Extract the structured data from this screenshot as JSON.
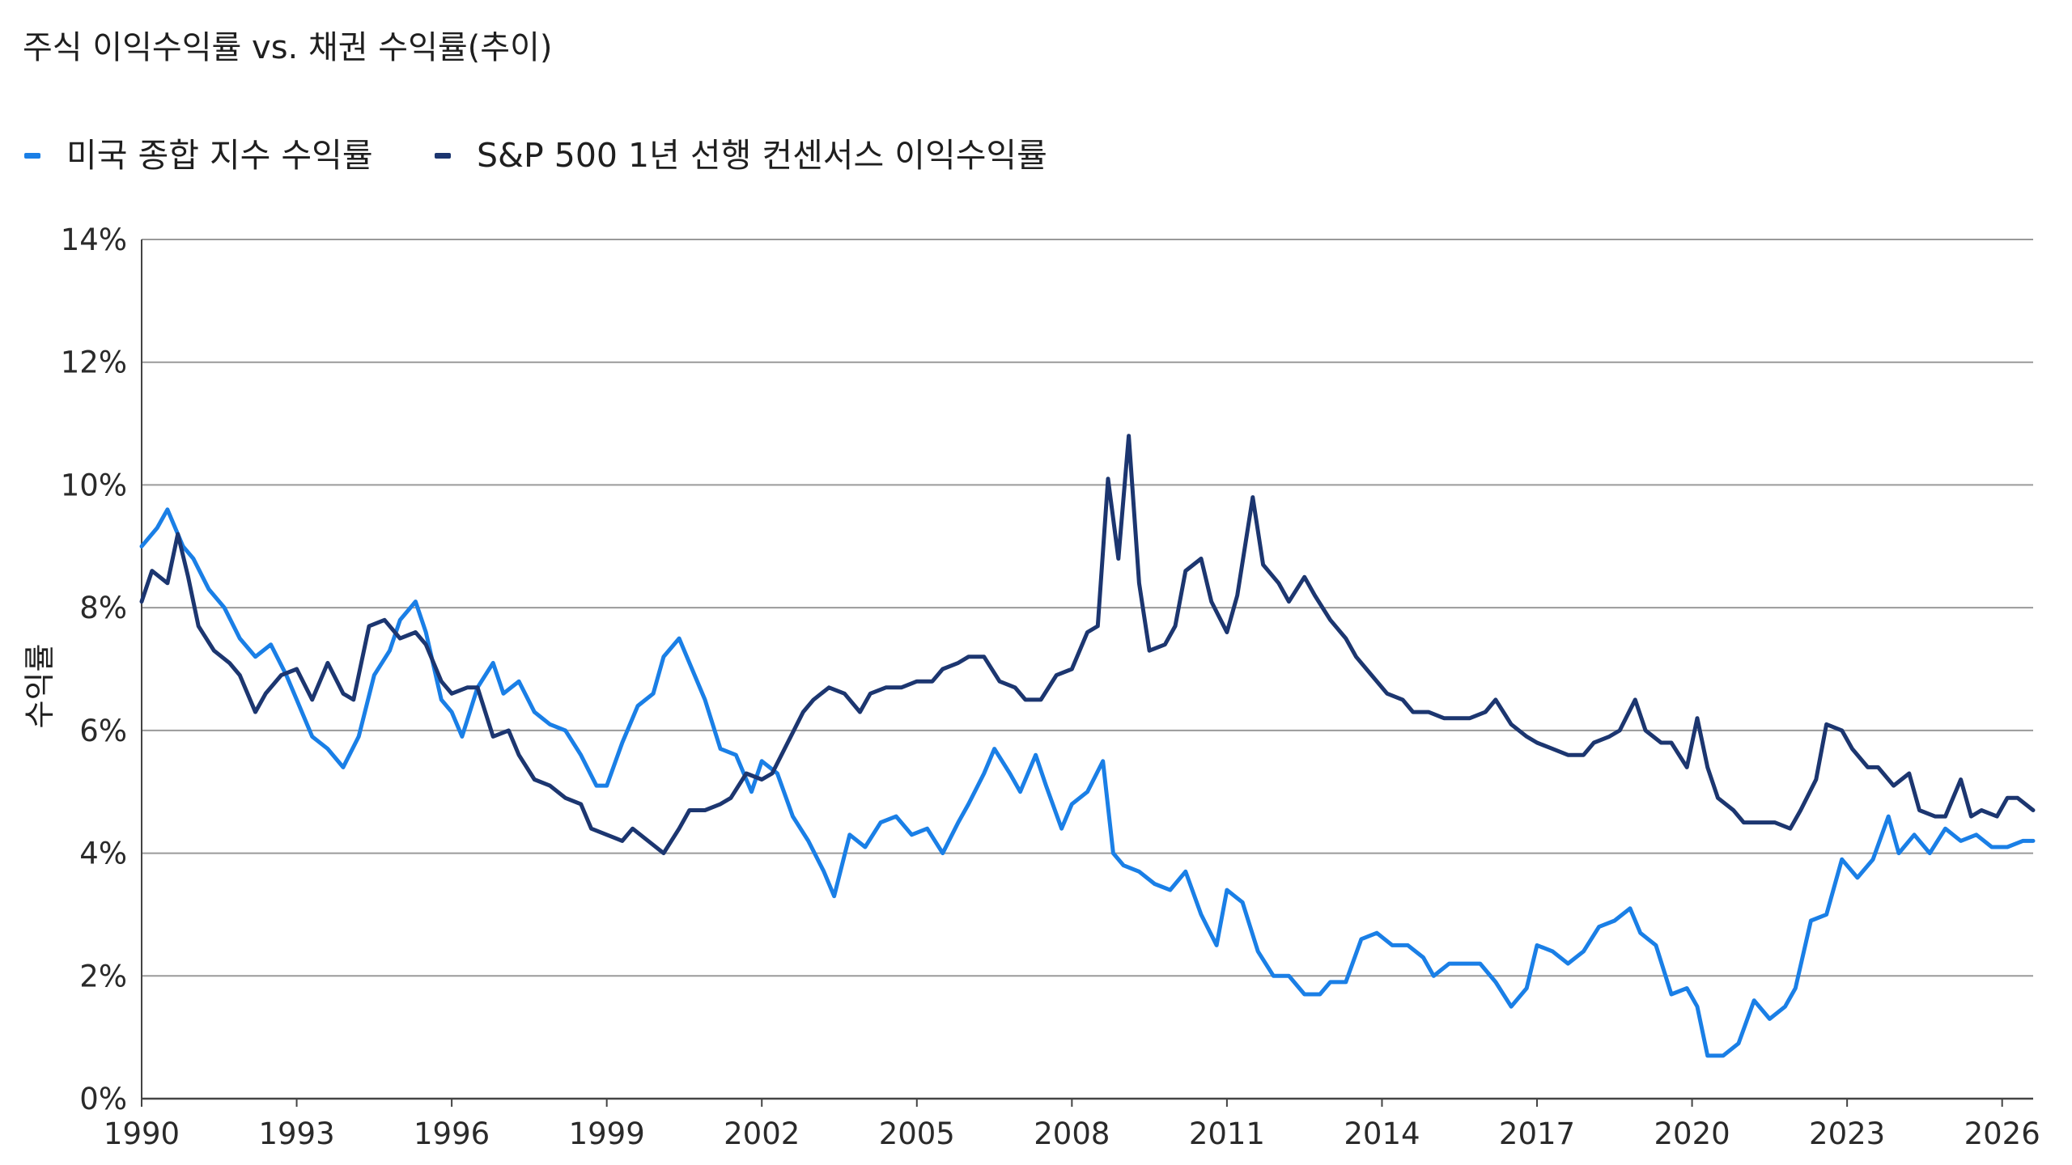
{
  "chart_data": {
    "type": "line",
    "title": "주식 이익수익률 vs. 채권 수익률(추이)",
    "ylabel": "수익률",
    "xlabel": "",
    "xlim": [
      1990,
      2026.6
    ],
    "ylim": [
      0,
      14
    ],
    "grid": "horizontal",
    "legend_position": "top-left",
    "x_ticks": [
      1990,
      1993,
      1996,
      1999,
      2002,
      2005,
      2008,
      2011,
      2014,
      2017,
      2020,
      2023,
      2026
    ],
    "x_tick_labels": [
      "1990",
      "1993",
      "1996",
      "1999",
      "2002",
      "2005",
      "2008",
      "2011",
      "2014",
      "2017",
      "2020",
      "2023",
      "2026"
    ],
    "y_ticks": [
      0,
      2,
      4,
      6,
      8,
      10,
      12,
      14
    ],
    "y_tick_labels": [
      "0%",
      "2%",
      "4%",
      "6%",
      "8%",
      "10%",
      "12%",
      "14%"
    ],
    "series": [
      {
        "name": "미국 종합 지수 수익률",
        "color": "#1a7fe6",
        "points": [
          [
            1990.0,
            9.0
          ],
          [
            1990.3,
            9.3
          ],
          [
            1990.5,
            9.6
          ],
          [
            1990.8,
            9.0
          ],
          [
            1991.0,
            8.8
          ],
          [
            1991.3,
            8.3
          ],
          [
            1991.6,
            8.0
          ],
          [
            1991.9,
            7.5
          ],
          [
            1992.2,
            7.2
          ],
          [
            1992.5,
            7.4
          ],
          [
            1992.8,
            6.9
          ],
          [
            1993.0,
            6.5
          ],
          [
            1993.3,
            5.9
          ],
          [
            1993.6,
            5.7
          ],
          [
            1993.9,
            5.4
          ],
          [
            1994.2,
            5.9
          ],
          [
            1994.5,
            6.9
          ],
          [
            1994.8,
            7.3
          ],
          [
            1995.0,
            7.8
          ],
          [
            1995.3,
            8.1
          ],
          [
            1995.5,
            7.6
          ],
          [
            1995.8,
            6.5
          ],
          [
            1996.0,
            6.3
          ],
          [
            1996.2,
            5.9
          ],
          [
            1996.5,
            6.7
          ],
          [
            1996.8,
            7.1
          ],
          [
            1997.0,
            6.6
          ],
          [
            1997.3,
            6.8
          ],
          [
            1997.6,
            6.3
          ],
          [
            1997.9,
            6.1
          ],
          [
            1998.2,
            6.0
          ],
          [
            1998.5,
            5.6
          ],
          [
            1998.8,
            5.1
          ],
          [
            1999.0,
            5.1
          ],
          [
            1999.3,
            5.8
          ],
          [
            1999.6,
            6.4
          ],
          [
            1999.9,
            6.6
          ],
          [
            2000.1,
            7.2
          ],
          [
            2000.4,
            7.5
          ],
          [
            2000.6,
            7.1
          ],
          [
            2000.9,
            6.5
          ],
          [
            2001.2,
            5.7
          ],
          [
            2001.5,
            5.6
          ],
          [
            2001.8,
            5.0
          ],
          [
            2002.0,
            5.5
          ],
          [
            2002.3,
            5.3
          ],
          [
            2002.6,
            4.6
          ],
          [
            2002.9,
            4.2
          ],
          [
            2003.2,
            3.7
          ],
          [
            2003.4,
            3.3
          ],
          [
            2003.7,
            4.3
          ],
          [
            2004.0,
            4.1
          ],
          [
            2004.3,
            4.5
          ],
          [
            2004.6,
            4.6
          ],
          [
            2004.9,
            4.3
          ],
          [
            2005.2,
            4.4
          ],
          [
            2005.5,
            4.0
          ],
          [
            2005.8,
            4.5
          ],
          [
            2006.0,
            4.8
          ],
          [
            2006.3,
            5.3
          ],
          [
            2006.5,
            5.7
          ],
          [
            2006.8,
            5.3
          ],
          [
            2007.0,
            5.0
          ],
          [
            2007.3,
            5.6
          ],
          [
            2007.5,
            5.1
          ],
          [
            2007.8,
            4.4
          ],
          [
            2008.0,
            4.8
          ],
          [
            2008.3,
            5.0
          ],
          [
            2008.6,
            5.5
          ],
          [
            2008.8,
            4.0
          ],
          [
            2009.0,
            3.8
          ],
          [
            2009.3,
            3.7
          ],
          [
            2009.6,
            3.5
          ],
          [
            2009.9,
            3.4
          ],
          [
            2010.2,
            3.7
          ],
          [
            2010.5,
            3.0
          ],
          [
            2010.8,
            2.5
          ],
          [
            2011.0,
            3.4
          ],
          [
            2011.3,
            3.2
          ],
          [
            2011.6,
            2.4
          ],
          [
            2011.9,
            2.0
          ],
          [
            2012.2,
            2.0
          ],
          [
            2012.5,
            1.7
          ],
          [
            2012.8,
            1.7
          ],
          [
            2013.0,
            1.9
          ],
          [
            2013.3,
            1.9
          ],
          [
            2013.6,
            2.6
          ],
          [
            2013.9,
            2.7
          ],
          [
            2014.2,
            2.5
          ],
          [
            2014.5,
            2.5
          ],
          [
            2014.8,
            2.3
          ],
          [
            2015.0,
            2.0
          ],
          [
            2015.3,
            2.2
          ],
          [
            2015.6,
            2.2
          ],
          [
            2015.9,
            2.2
          ],
          [
            2016.2,
            1.9
          ],
          [
            2016.5,
            1.5
          ],
          [
            2016.8,
            1.8
          ],
          [
            2017.0,
            2.5
          ],
          [
            2017.3,
            2.4
          ],
          [
            2017.6,
            2.2
          ],
          [
            2017.9,
            2.4
          ],
          [
            2018.2,
            2.8
          ],
          [
            2018.5,
            2.9
          ],
          [
            2018.8,
            3.1
          ],
          [
            2019.0,
            2.7
          ],
          [
            2019.3,
            2.5
          ],
          [
            2019.6,
            1.7
          ],
          [
            2019.9,
            1.8
          ],
          [
            2020.1,
            1.5
          ],
          [
            2020.3,
            0.7
          ],
          [
            2020.6,
            0.7
          ],
          [
            2020.9,
            0.9
          ],
          [
            2021.2,
            1.6
          ],
          [
            2021.5,
            1.3
          ],
          [
            2021.8,
            1.5
          ],
          [
            2022.0,
            1.8
          ],
          [
            2022.3,
            2.9
          ],
          [
            2022.6,
            3.0
          ],
          [
            2022.9,
            3.9
          ],
          [
            2023.2,
            3.6
          ],
          [
            2023.5,
            3.9
          ],
          [
            2023.8,
            4.6
          ],
          [
            2024.0,
            4.0
          ],
          [
            2024.3,
            4.3
          ],
          [
            2024.6,
            4.0
          ],
          [
            2024.9,
            4.4
          ],
          [
            2025.2,
            4.2
          ],
          [
            2025.5,
            4.3
          ],
          [
            2025.8,
            4.1
          ],
          [
            2026.1,
            4.1
          ],
          [
            2026.4,
            4.2
          ],
          [
            2026.6,
            4.2
          ]
        ]
      },
      {
        "name": "S&P 500 1년 선행 컨센서스 이익수익률",
        "color": "#1c3670",
        "points": [
          [
            1990.0,
            8.1
          ],
          [
            1990.2,
            8.6
          ],
          [
            1990.5,
            8.4
          ],
          [
            1990.7,
            9.2
          ],
          [
            1990.9,
            8.5
          ],
          [
            1991.1,
            7.7
          ],
          [
            1991.4,
            7.3
          ],
          [
            1991.7,
            7.1
          ],
          [
            1991.9,
            6.9
          ],
          [
            1992.2,
            6.3
          ],
          [
            1992.4,
            6.6
          ],
          [
            1992.7,
            6.9
          ],
          [
            1993.0,
            7.0
          ],
          [
            1993.3,
            6.5
          ],
          [
            1993.6,
            7.1
          ],
          [
            1993.9,
            6.6
          ],
          [
            1994.1,
            6.5
          ],
          [
            1994.4,
            7.7
          ],
          [
            1994.7,
            7.8
          ],
          [
            1995.0,
            7.5
          ],
          [
            1995.3,
            7.6
          ],
          [
            1995.5,
            7.4
          ],
          [
            1995.8,
            6.8
          ],
          [
            1996.0,
            6.6
          ],
          [
            1996.3,
            6.7
          ],
          [
            1996.5,
            6.7
          ],
          [
            1996.8,
            5.9
          ],
          [
            1997.1,
            6.0
          ],
          [
            1997.3,
            5.6
          ],
          [
            1997.6,
            5.2
          ],
          [
            1997.9,
            5.1
          ],
          [
            1998.2,
            4.9
          ],
          [
            1998.5,
            4.8
          ],
          [
            1998.7,
            4.4
          ],
          [
            1999.0,
            4.3
          ],
          [
            1999.3,
            4.2
          ],
          [
            1999.5,
            4.4
          ],
          [
            1999.8,
            4.2
          ],
          [
            2000.1,
            4.0
          ],
          [
            2000.4,
            4.4
          ],
          [
            2000.6,
            4.7
          ],
          [
            2000.9,
            4.7
          ],
          [
            2001.2,
            4.8
          ],
          [
            2001.4,
            4.9
          ],
          [
            2001.7,
            5.3
          ],
          [
            2002.0,
            5.2
          ],
          [
            2002.2,
            5.3
          ],
          [
            2002.5,
            5.8
          ],
          [
            2002.8,
            6.3
          ],
          [
            2003.0,
            6.5
          ],
          [
            2003.3,
            6.7
          ],
          [
            2003.6,
            6.6
          ],
          [
            2003.9,
            6.3
          ],
          [
            2004.1,
            6.6
          ],
          [
            2004.4,
            6.7
          ],
          [
            2004.7,
            6.7
          ],
          [
            2005.0,
            6.8
          ],
          [
            2005.3,
            6.8
          ],
          [
            2005.5,
            7.0
          ],
          [
            2005.8,
            7.1
          ],
          [
            2006.0,
            7.2
          ],
          [
            2006.3,
            7.2
          ],
          [
            2006.6,
            6.8
          ],
          [
            2006.9,
            6.7
          ],
          [
            2007.1,
            6.5
          ],
          [
            2007.4,
            6.5
          ],
          [
            2007.7,
            6.9
          ],
          [
            2008.0,
            7.0
          ],
          [
            2008.3,
            7.6
          ],
          [
            2008.5,
            7.7
          ],
          [
            2008.7,
            10.1
          ],
          [
            2008.9,
            8.8
          ],
          [
            2009.1,
            10.8
          ],
          [
            2009.3,
            8.4
          ],
          [
            2009.5,
            7.3
          ],
          [
            2009.8,
            7.4
          ],
          [
            2010.0,
            7.7
          ],
          [
            2010.2,
            8.6
          ],
          [
            2010.5,
            8.8
          ],
          [
            2010.7,
            8.1
          ],
          [
            2011.0,
            7.6
          ],
          [
            2011.2,
            8.2
          ],
          [
            2011.5,
            9.8
          ],
          [
            2011.7,
            8.7
          ],
          [
            2012.0,
            8.4
          ],
          [
            2012.2,
            8.1
          ],
          [
            2012.5,
            8.5
          ],
          [
            2012.7,
            8.2
          ],
          [
            2013.0,
            7.8
          ],
          [
            2013.3,
            7.5
          ],
          [
            2013.5,
            7.2
          ],
          [
            2013.8,
            6.9
          ],
          [
            2014.1,
            6.6
          ],
          [
            2014.4,
            6.5
          ],
          [
            2014.6,
            6.3
          ],
          [
            2014.9,
            6.3
          ],
          [
            2015.2,
            6.2
          ],
          [
            2015.4,
            6.2
          ],
          [
            2015.7,
            6.2
          ],
          [
            2016.0,
            6.3
          ],
          [
            2016.2,
            6.5
          ],
          [
            2016.5,
            6.1
          ],
          [
            2016.8,
            5.9
          ],
          [
            2017.0,
            5.8
          ],
          [
            2017.3,
            5.7
          ],
          [
            2017.6,
            5.6
          ],
          [
            2017.9,
            5.6
          ],
          [
            2018.1,
            5.8
          ],
          [
            2018.4,
            5.9
          ],
          [
            2018.6,
            6.0
          ],
          [
            2018.9,
            6.5
          ],
          [
            2019.1,
            6.0
          ],
          [
            2019.4,
            5.8
          ],
          [
            2019.6,
            5.8
          ],
          [
            2019.9,
            5.4
          ],
          [
            2020.1,
            6.2
          ],
          [
            2020.3,
            5.4
          ],
          [
            2020.5,
            4.9
          ],
          [
            2020.8,
            4.7
          ],
          [
            2021.0,
            4.5
          ],
          [
            2021.3,
            4.5
          ],
          [
            2021.6,
            4.5
          ],
          [
            2021.9,
            4.4
          ],
          [
            2022.1,
            4.7
          ],
          [
            2022.4,
            5.2
          ],
          [
            2022.6,
            6.1
          ],
          [
            2022.9,
            6.0
          ],
          [
            2023.1,
            5.7
          ],
          [
            2023.4,
            5.4
          ],
          [
            2023.6,
            5.4
          ],
          [
            2023.9,
            5.1
          ],
          [
            2024.2,
            5.3
          ],
          [
            2024.4,
            4.7
          ],
          [
            2024.7,
            4.6
          ],
          [
            2024.9,
            4.6
          ],
          [
            2025.2,
            5.2
          ],
          [
            2025.4,
            4.6
          ],
          [
            2025.6,
            4.7
          ],
          [
            2025.9,
            4.6
          ],
          [
            2026.1,
            4.9
          ],
          [
            2026.3,
            4.9
          ],
          [
            2026.6,
            4.7
          ]
        ]
      }
    ]
  }
}
